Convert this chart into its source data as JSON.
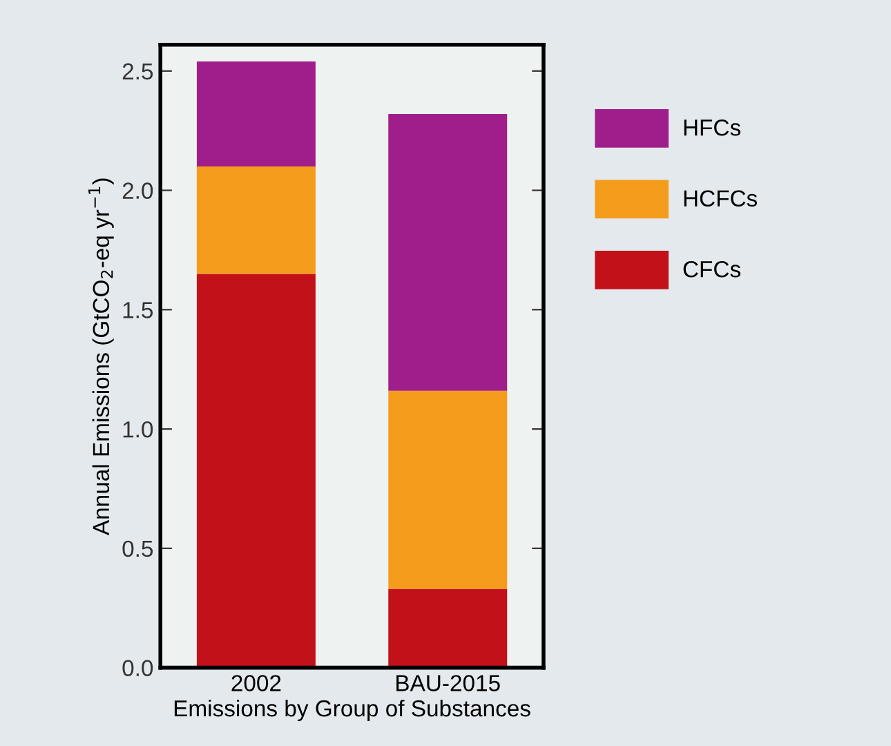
{
  "chart_data": {
    "type": "bar",
    "stacked": true,
    "categories": [
      "2002",
      "BAU-2015"
    ],
    "series": [
      {
        "name": "CFCs",
        "color": "#c3111a",
        "values": [
          1.65,
          0.33
        ]
      },
      {
        "name": "HCFCs",
        "color": "#f59c1d",
        "values": [
          0.45,
          0.83
        ]
      },
      {
        "name": "HFCs",
        "color": "#a01e8c",
        "values": [
          0.44,
          1.16
        ]
      }
    ],
    "xlabel": "Emissions by Group of Substances",
    "ylabel": "Annual Emissions (GtCO$_{2}$-eq yr$^{−1}$)",
    "ylim": [
      0,
      2.61
    ],
    "yticks": [
      {
        "value": 0,
        "label": "0.0"
      },
      0.5,
      {
        "value": 1,
        "label": "1.0"
      },
      1.5,
      {
        "value": 2,
        "label": "2.0"
      },
      2.5
    ],
    "legend": "right",
    "grid": false
  }
}
